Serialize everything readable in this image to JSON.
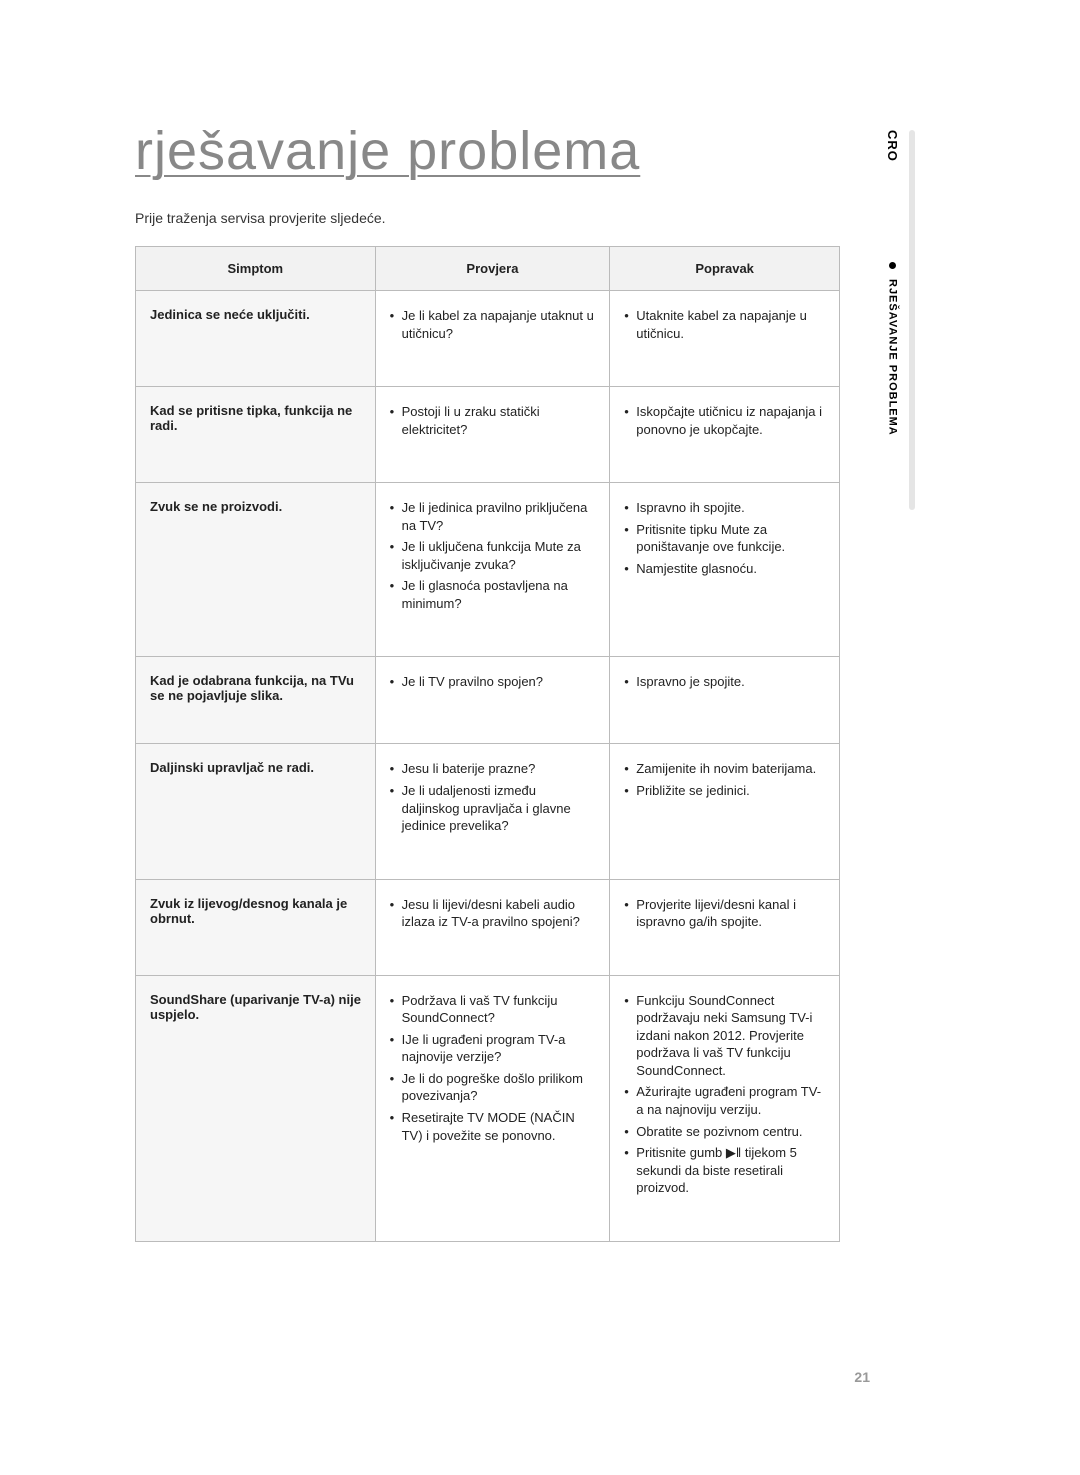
{
  "title": "rješavanje problema",
  "intro": "Prije traženja servisa provjerite sljedeće.",
  "side": {
    "lang": "CRO",
    "section": "RJEŠAVANJE PROBLEMA"
  },
  "page_number": "21",
  "table": {
    "headers": {
      "symptom": "Simptom",
      "check": "Provjera",
      "fix": "Popravak"
    },
    "rows": [
      {
        "symptom": "Jedinica se neće uključiti.",
        "check": [
          "Je li kabel za napajanje utaknut u utičnicu?"
        ],
        "fix": [
          "Utaknite kabel za napajanje u utičnicu."
        ]
      },
      {
        "symptom": "Kad se pritisne tipka, funkcija ne radi.",
        "check": [
          "Postoji li u zraku statički elektricitet?"
        ],
        "fix": [
          "Iskopčajte utičnicu iz napajanja i ponovno je ukopčajte."
        ]
      },
      {
        "symptom": "Zvuk se ne proizvodi.",
        "check": [
          "Je li jedinica pravilno priključena na TV?",
          "Je li uključena funkcija Mute za isključivanje zvuka?",
          "Je li glasnoća postavljena na minimum?"
        ],
        "fix": [
          "Ispravno ih spojite.",
          "Pritisnite tipku Mute za poništavanje ove funkcije.",
          "Namjestite glasnoću."
        ]
      },
      {
        "symptom": "Kad je odabrana funkcija, na TVu se ne pojavljuje slika.",
        "check": [
          "Je li TV pravilno spojen?"
        ],
        "fix": [
          "Ispravno je spojite."
        ]
      },
      {
        "symptom": "Daljinski upravljač ne radi.",
        "check": [
          "Jesu li baterije prazne?",
          "Je li udaljenosti između daljinskog upravljača i glavne jedinice prevelika?"
        ],
        "fix": [
          "Zamijenite ih novim baterijama.",
          "Približite se jedinici."
        ]
      },
      {
        "symptom": "Zvuk iz lijevog/desnog kanala je obrnut.",
        "check": [
          "Jesu li lijevi/desni kabeli audio izlaza iz TV-a pravilno spojeni?"
        ],
        "fix": [
          "Provjerite lijevi/desni kanal i ispravno ga/ih spojite."
        ]
      },
      {
        "symptom": "SoundShare (uparivanje TV-a) nije uspjelo.",
        "check": [
          "Podržava li vaš TV funkciju SoundConnect?",
          "IJe li ugrađeni program TV-a najnovije verzije?",
          "Je li do pogreške došlo prilikom povezivanja?",
          "Resetirajte TV MODE (NAČIN TV) i povežite se ponovno."
        ],
        "fix": [
          "Funkciju SoundConnect podržavaju neki Samsung TV-i izdani nakon 2012. Provjerite podržava li vaš TV funkciju SoundConnect.",
          "Ažurirajte ugrađeni program TV-a na najnoviju verziju.",
          "Obratite se pozivnom centru.",
          "Pritisnite gumb ▶ǁ tijekom 5 sekundi da biste resetirali proizvod."
        ]
      }
    ]
  }
}
